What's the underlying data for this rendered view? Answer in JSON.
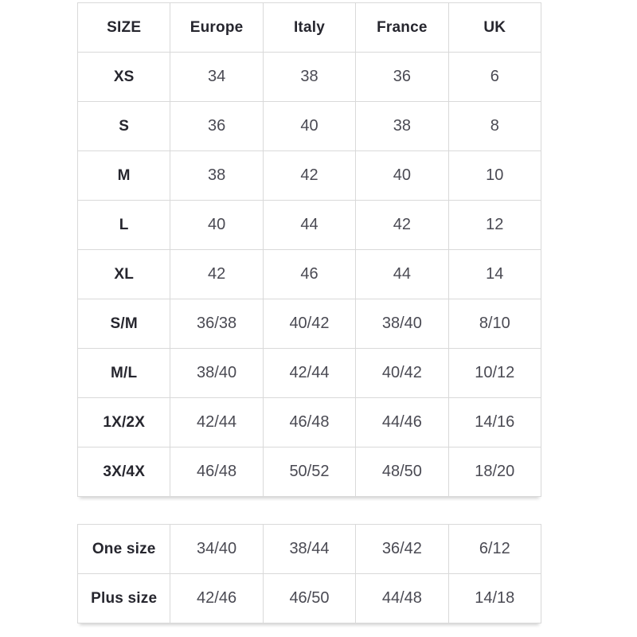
{
  "colors": {
    "background": "#ffffff",
    "border": "#d9d9d9",
    "header_text": "#26262e",
    "cell_text": "#4a4a53"
  },
  "chart_data": {
    "type": "table",
    "columns": [
      "SIZE",
      "Europe",
      "Italy",
      "France",
      "UK"
    ],
    "rows": [
      [
        "XS",
        "34",
        "38",
        "36",
        "6"
      ],
      [
        "S",
        "36",
        "40",
        "38",
        "8"
      ],
      [
        "M",
        "38",
        "42",
        "40",
        "10"
      ],
      [
        "L",
        "40",
        "44",
        "42",
        "12"
      ],
      [
        "XL",
        "42",
        "46",
        "44",
        "14"
      ],
      [
        "S/M",
        "36/38",
        "40/42",
        "38/40",
        "8/10"
      ],
      [
        "M/L",
        "38/40",
        "42/44",
        "40/42",
        "10/12"
      ],
      [
        "1X/2X",
        "42/44",
        "46/48",
        "44/46",
        "14/16"
      ],
      [
        "3X/4X",
        "46/48",
        "50/52",
        "48/50",
        "18/20"
      ]
    ],
    "secondary_rows": [
      [
        "One size",
        "34/40",
        "38/44",
        "36/42",
        "6/12"
      ],
      [
        "Plus size",
        "42/46",
        "46/50",
        "44/48",
        "14/18"
      ]
    ],
    "layout": {
      "grid": "full-borders",
      "header_row": true,
      "bold_first_column": true
    }
  }
}
